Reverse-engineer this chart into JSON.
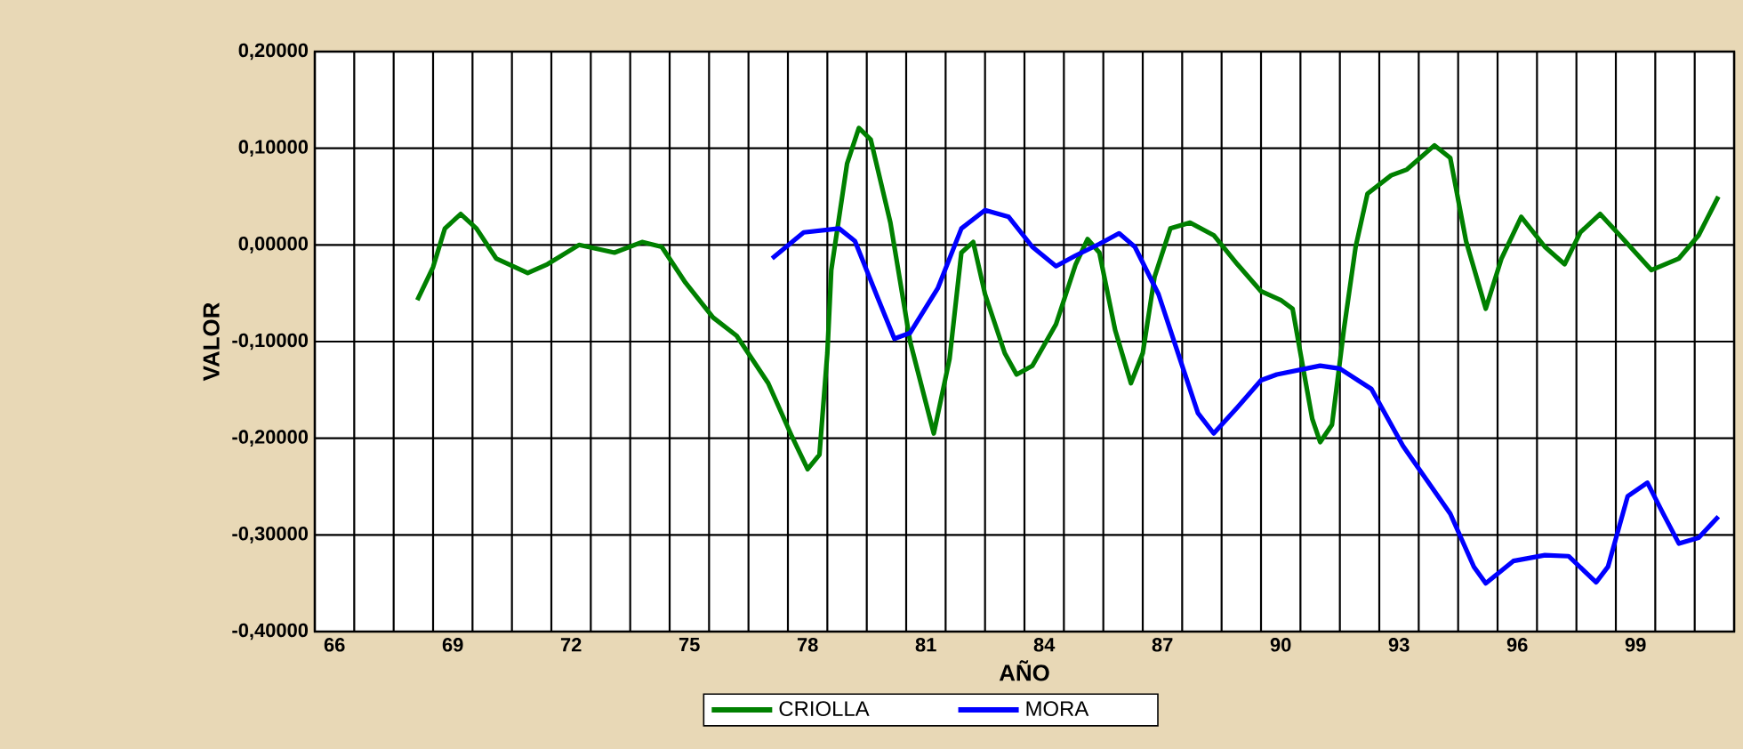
{
  "chart_data": {
    "type": "line",
    "xlabel": "AÑO",
    "ylabel": "VALOR",
    "xlim": [
      65.5,
      101.5
    ],
    "xticks": [
      66,
      69,
      72,
      75,
      78,
      81,
      84,
      87,
      90,
      93,
      96,
      99
    ],
    "ylim": [
      -0.4,
      0.2
    ],
    "yticks": [
      {
        "value": -0.4,
        "label": "-0,40000"
      },
      {
        "value": -0.3,
        "label": "-0,30000"
      },
      {
        "value": -0.2,
        "label": "-0,20000"
      },
      {
        "value": -0.1,
        "label": "-0,10000"
      },
      {
        "value": 0,
        "label": "0,00000"
      },
      {
        "value": 0.1,
        "label": "0,10000"
      },
      {
        "value": 0.2,
        "label": "0,20000"
      }
    ],
    "grid": true,
    "legend": "bottom",
    "marker": "none",
    "line_style": "solid",
    "series": [
      {
        "name": "CRIOLLA",
        "color": "#008000",
        "x": [
          68.1,
          68.5,
          68.8,
          69.2,
          69.6,
          70.1,
          70.9,
          71.4,
          72.2,
          73.1,
          73.8,
          74.3,
          74.9,
          75.6,
          76.2,
          77.0,
          77.6,
          78.0,
          78.3,
          78.5,
          78.6,
          79.0,
          79.3,
          79.6,
          80.1,
          80.6,
          81.2,
          81.6,
          81.9,
          82.2,
          82.5,
          83.0,
          83.3,
          83.7,
          84.3,
          84.8,
          85.1,
          85.4,
          85.8,
          86.2,
          86.5,
          86.8,
          87.2,
          87.7,
          88.3,
          88.9,
          89.5,
          90.0,
          90.3,
          90.5,
          90.8,
          91.0,
          91.3,
          91.6,
          91.9,
          92.2,
          92.8,
          93.2,
          93.9,
          94.3,
          94.7,
          95.2,
          95.6,
          96.1,
          96.7,
          97.2,
          97.6,
          98.1,
          98.6,
          99.4,
          100.1,
          100.6,
          101.1
        ],
        "values": [
          -0.057,
          -0.023,
          0.017,
          0.032,
          0.017,
          -0.014,
          -0.029,
          -0.02,
          0.0,
          -0.008,
          0.003,
          -0.002,
          -0.039,
          -0.075,
          -0.094,
          -0.143,
          -0.198,
          -0.232,
          -0.217,
          -0.112,
          -0.026,
          0.084,
          0.121,
          0.109,
          0.023,
          -0.1,
          -0.195,
          -0.118,
          -0.008,
          0.003,
          -0.051,
          -0.112,
          -0.134,
          -0.125,
          -0.082,
          -0.02,
          0.006,
          -0.008,
          -0.088,
          -0.143,
          -0.112,
          -0.033,
          0.017,
          0.023,
          0.01,
          -0.02,
          -0.048,
          -0.057,
          -0.066,
          -0.112,
          -0.18,
          -0.204,
          -0.186,
          -0.088,
          -0.002,
          0.053,
          0.072,
          0.078,
          0.103,
          0.09,
          0.004,
          -0.066,
          -0.014,
          0.029,
          -0.002,
          -0.02,
          0.013,
          0.032,
          0.01,
          -0.026,
          -0.014,
          0.01,
          0.05
        ]
      },
      {
        "name": "MORA",
        "color": "#0000ff",
        "x": [
          77.1,
          77.9,
          78.8,
          79.2,
          79.8,
          80.2,
          80.6,
          81.3,
          81.9,
          82.5,
          83.1,
          83.7,
          84.3,
          84.8,
          85.4,
          85.9,
          86.3,
          86.9,
          87.5,
          87.9,
          88.3,
          88.9,
          89.5,
          89.9,
          91.0,
          91.5,
          92.3,
          93.1,
          94.3,
          94.9,
          95.2,
          95.9,
          96.7,
          97.3,
          98.0,
          98.3,
          98.8,
          99.3,
          99.7,
          100.1,
          100.6,
          101.1
        ],
        "values": [
          -0.014,
          0.013,
          0.017,
          0.004,
          -0.057,
          -0.097,
          -0.091,
          -0.045,
          0.017,
          0.036,
          0.029,
          -0.002,
          -0.022,
          -0.011,
          0.001,
          0.012,
          -0.002,
          -0.051,
          -0.125,
          -0.174,
          -0.195,
          -0.168,
          -0.14,
          -0.134,
          -0.125,
          -0.128,
          -0.149,
          -0.208,
          -0.278,
          -0.333,
          -0.35,
          -0.327,
          -0.321,
          -0.322,
          -0.349,
          -0.333,
          -0.26,
          -0.246,
          -0.278,
          -0.309,
          -0.303,
          -0.281
        ]
      }
    ]
  }
}
